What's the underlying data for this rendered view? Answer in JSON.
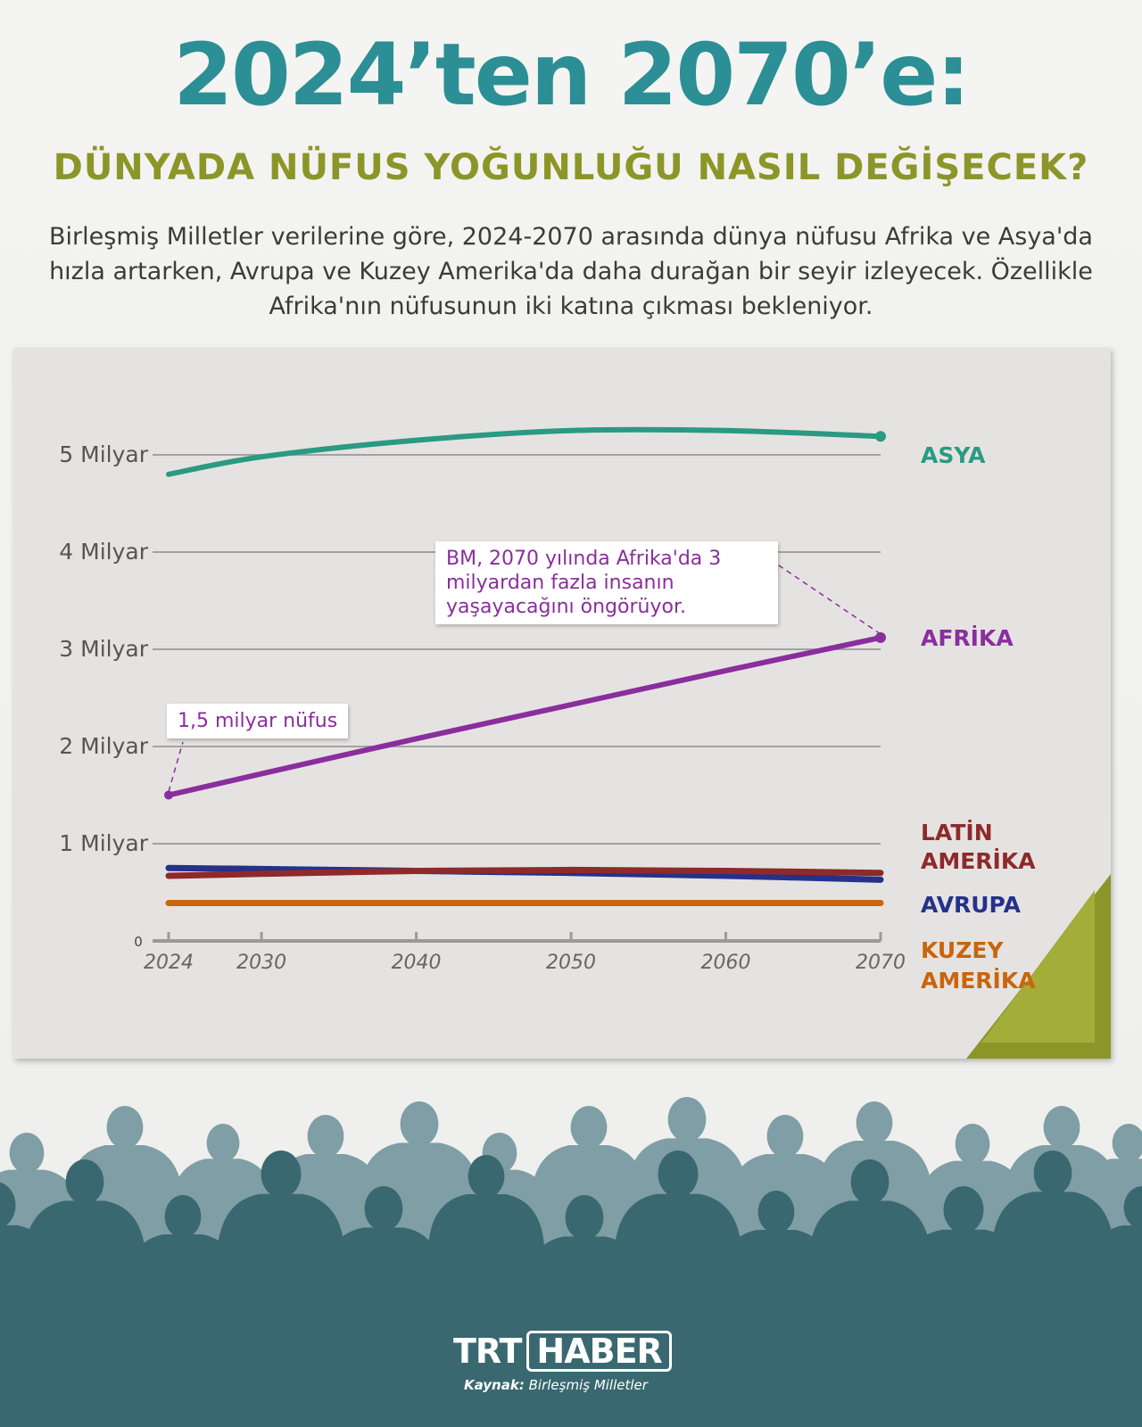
{
  "header": {
    "title": "2024’ten 2070’e:",
    "subtitle": "DÜNYADA NÜFUS YOĞUNLUĞU NASIL DEĞİŞECEK?",
    "intro": "Birleşmiş Milletler verilerine göre, 2024-2070 arasında dünya nüfusu Afrika ve Asya'da hızla artarken, Avrupa ve Kuzey Amerika'da daha durağan bir seyir izleyecek. Özellikle Afrika'nın nüfusunun iki katına çıkması bekleniyor."
  },
  "annotations": {
    "africa_2024": "1,5 milyar nüfus",
    "africa_2070": "BM, 2070 yılında Afrika'da 3 milyardan fazla insanın yaşayacağını öngörüyor."
  },
  "footer": {
    "logo_trt": "TRT",
    "logo_haber": "HABER",
    "source_label": "Kaynak:",
    "source_value": "Birleşmiş Milletler"
  },
  "colors": {
    "title": "#2b8f95",
    "subtitle": "#8c9628",
    "panel": "#e5e3e1",
    "grid": "#9e9e9e",
    "asia": "#2a9a82",
    "africa": "#8a2e9e",
    "latin_america": "#8e2a2a",
    "europe": "#25318a",
    "north_america": "#c9650c",
    "crowd_light": "#7f9ea5",
    "crowd_dark": "#3a6870"
  },
  "chart_data": {
    "type": "line",
    "x": [
      2024,
      2030,
      2040,
      2050,
      2060,
      2070
    ],
    "xticks": [
      "2024",
      "2030",
      "2040",
      "2050",
      "2060",
      "2070"
    ],
    "yticks": [
      {
        "value": 0,
        "label": "0"
      },
      {
        "value": 1,
        "label": "1 Milyar"
      },
      {
        "value": 2,
        "label": "2 Milyar"
      },
      {
        "value": 3,
        "label": "3 Milyar"
      },
      {
        "value": 4,
        "label": "4 Milyar"
      },
      {
        "value": 5,
        "label": "5 Milyar"
      }
    ],
    "ylim": [
      0,
      5.5
    ],
    "xlim": [
      2024,
      2070
    ],
    "grid": true,
    "series": [
      {
        "key": "asia",
        "name": "ASYA",
        "color": "#2a9a82",
        "values": [
          4.8,
          4.98,
          5.15,
          5.25,
          5.25,
          5.19
        ]
      },
      {
        "key": "africa",
        "name": "AFRİKA",
        "color": "#8a2e9e",
        "values": [
          1.5,
          1.72,
          2.08,
          2.43,
          2.78,
          3.12
        ]
      },
      {
        "key": "latin_america",
        "name": "LATİN AMERİKA",
        "color": "#8e2a2a",
        "values": [
          0.67,
          0.69,
          0.72,
          0.73,
          0.72,
          0.7
        ]
      },
      {
        "key": "europe",
        "name": "AVRUPA",
        "color": "#25318a",
        "values": [
          0.75,
          0.74,
          0.72,
          0.7,
          0.67,
          0.63
        ]
      },
      {
        "key": "north_america",
        "name": "KUZEY AMERİKA",
        "color": "#c9650c",
        "values": [
          0.39,
          0.39,
          0.39,
          0.39,
          0.39,
          0.39
        ]
      }
    ]
  }
}
